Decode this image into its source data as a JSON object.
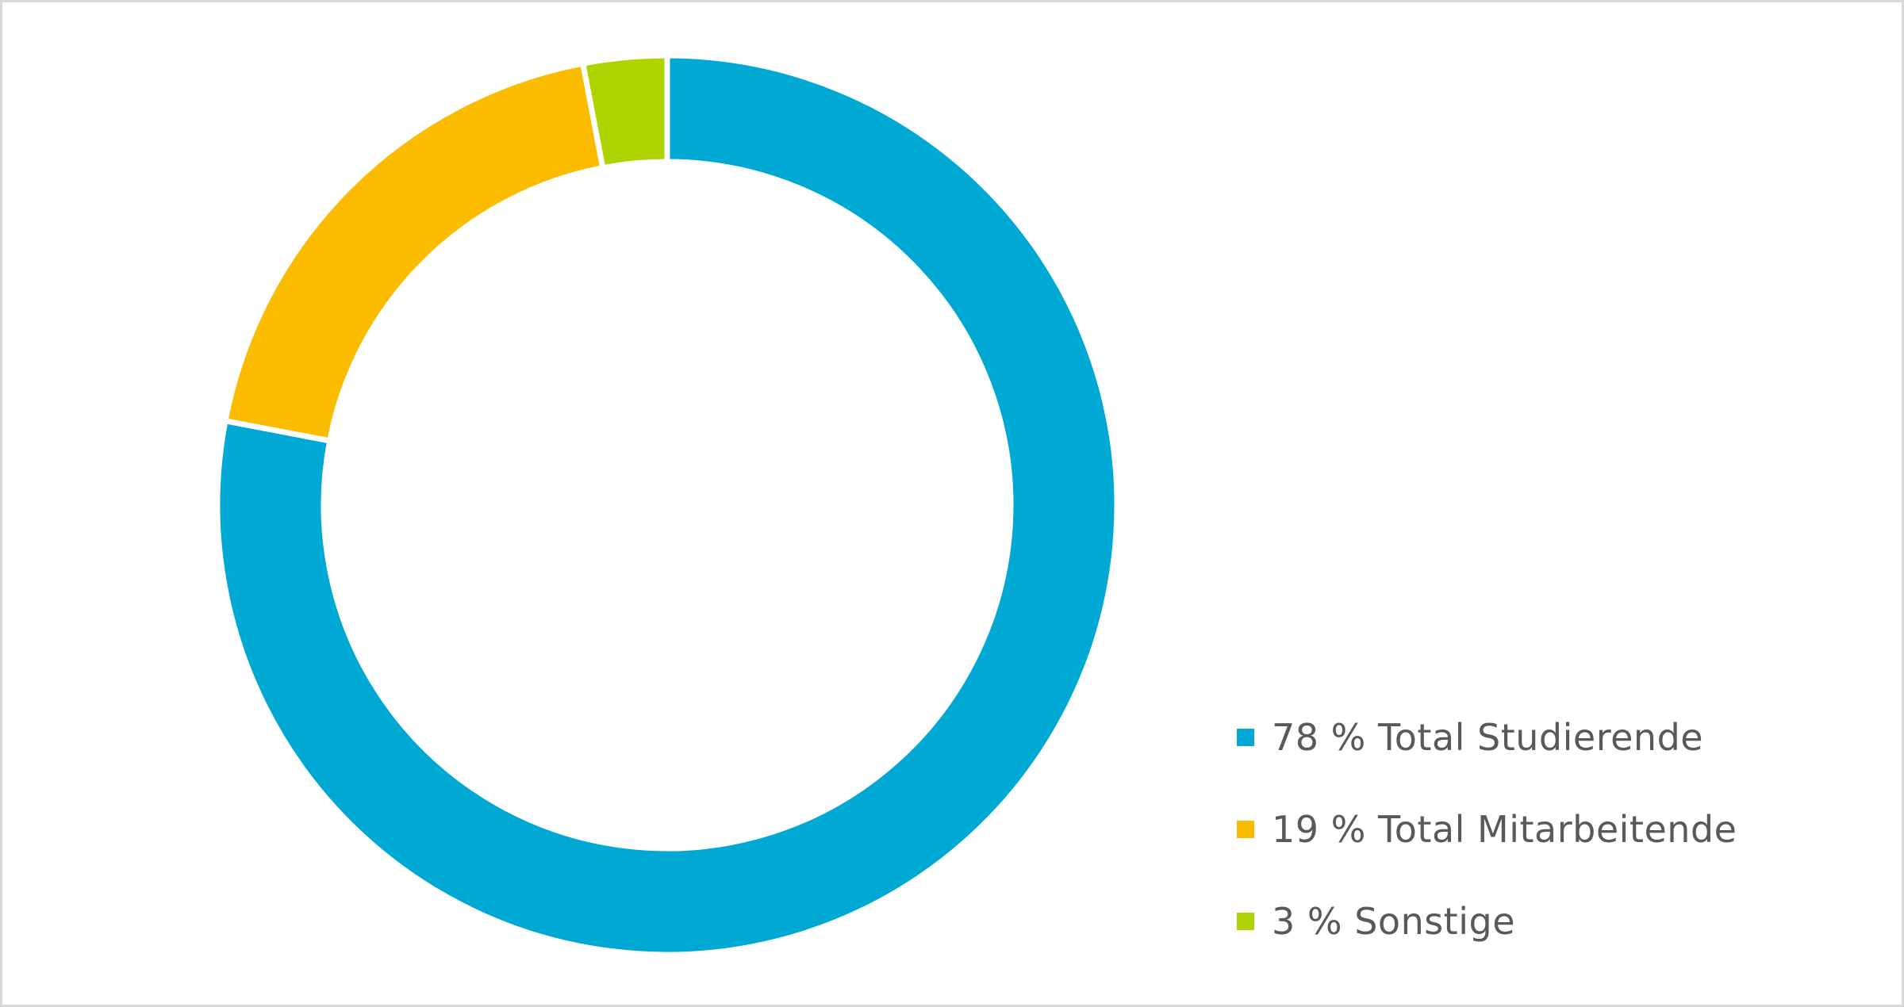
{
  "chart_data": {
    "type": "pie",
    "variant": "donut",
    "title": "",
    "categories": [
      "78 % Total Studierende",
      "19 % Total Mitarbeitende",
      "3 % Sonstige"
    ],
    "values": [
      78,
      19,
      3
    ],
    "unit": "%",
    "colors": [
      "#00a9d4",
      "#fbbc00",
      "#add300"
    ],
    "legend_position": "right-bottom",
    "start": "top",
    "direction": "clockwise"
  },
  "colors": {
    "background": "#ffffff",
    "border": "#d9d9d9",
    "legend_text": "#595959"
  }
}
